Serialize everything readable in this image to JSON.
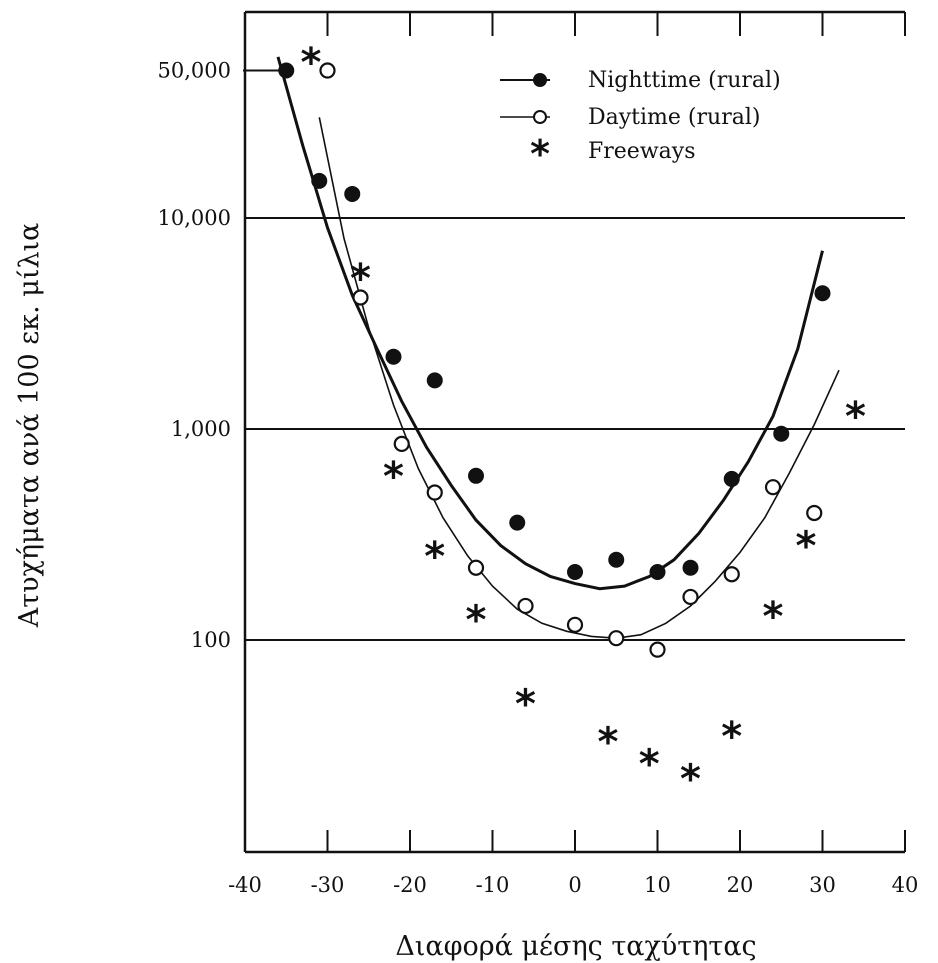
{
  "chart_data": {
    "type": "scatter",
    "title": "",
    "xlabel": "Διαφορά μέσης ταχύτητας",
    "ylabel": "Ατυχήματα ανά 100 εκ. μίλια",
    "xlim": [
      -40,
      40
    ],
    "ylim": [
      10,
      80000
    ],
    "yscale": "log",
    "grid": "horizontal lines at labeled y ticks",
    "legend_position": "top-right",
    "x_ticks": [
      -40,
      -30,
      -20,
      -10,
      0,
      10,
      20,
      30,
      40
    ],
    "x_tick_labels": [
      "-40",
      "-30",
      "-20",
      "-10",
      "0",
      "10",
      "20",
      "30",
      "40"
    ],
    "y_ticks": [
      100,
      1000,
      10000,
      50000
    ],
    "y_tick_labels": [
      "100",
      "1,000",
      "10,000",
      "50,000"
    ],
    "series": [
      {
        "name": "Nighttime (rural)",
        "marker": "filled-circle",
        "x": [
          -35,
          -31,
          -27,
          -22,
          -17,
          -12,
          -7,
          0,
          5,
          10,
          14,
          19,
          25,
          30
        ],
        "y": [
          50000,
          15000,
          13000,
          2200,
          1700,
          600,
          360,
          210,
          240,
          210,
          220,
          580,
          950,
          4400
        ]
      },
      {
        "name": "Daytime (rural)",
        "marker": "open-circle",
        "x": [
          -30,
          -26,
          -21,
          -17,
          -12,
          -6,
          0,
          5,
          10,
          14,
          19,
          24,
          29
        ],
        "y": [
          50000,
          4200,
          850,
          500,
          220,
          145,
          118,
          102,
          90,
          160,
          205,
          530,
          400
        ]
      },
      {
        "name": "Freeways",
        "marker": "star",
        "x": [
          -32,
          -26,
          -22,
          -17,
          -12,
          -6,
          4,
          9,
          14,
          19,
          24,
          28,
          34
        ],
        "y": [
          55000,
          5200,
          600,
          250,
          125,
          50,
          33,
          26,
          22,
          35,
          130,
          280,
          1150
        ]
      }
    ],
    "fit_curves": [
      {
        "series": "Nighttime (rural)",
        "style": "solid",
        "x": [
          -36,
          -33,
          -30,
          -27,
          -24,
          -21,
          -18,
          -15,
          -12,
          -9,
          -6,
          -3,
          0,
          3,
          6,
          9,
          12,
          15,
          18,
          21,
          24,
          27,
          30
        ],
        "y": [
          58000,
          22000,
          9000,
          4300,
          2400,
          1350,
          820,
          540,
          370,
          280,
          230,
          200,
          185,
          175,
          180,
          200,
          240,
          320,
          460,
          700,
          1150,
          2400,
          7000
        ]
      },
      {
        "series": "Daytime (rural)",
        "style": "thin",
        "x": [
          -31,
          -28,
          -25,
          -22,
          -19,
          -16,
          -13,
          -10,
          -7,
          -4,
          -1,
          2,
          5,
          8,
          11,
          14,
          17,
          20,
          23,
          26,
          29,
          32
        ],
        "y": [
          30000,
          8000,
          3000,
          1300,
          650,
          380,
          250,
          180,
          140,
          120,
          110,
          104,
          102,
          106,
          120,
          145,
          190,
          260,
          380,
          620,
          1050,
          1900
        ]
      }
    ]
  },
  "legend": {
    "night_label": "Nighttime (rural)",
    "day_label": "Daytime (rural)",
    "freeway_label": "Freeways"
  }
}
